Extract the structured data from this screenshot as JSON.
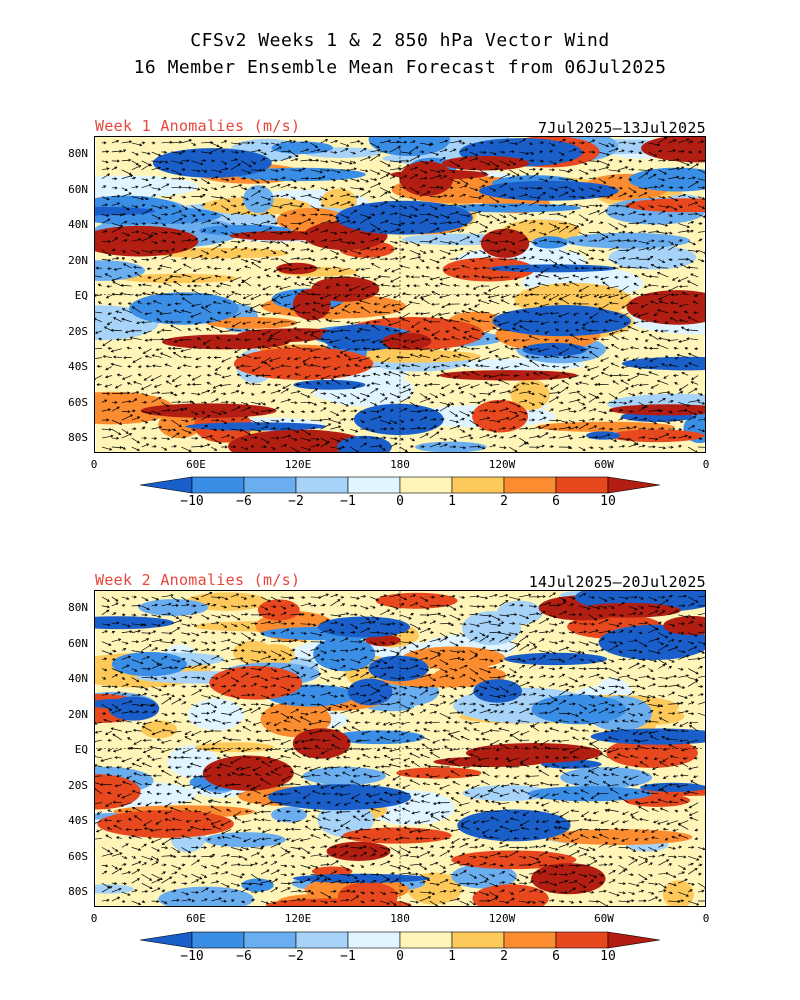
{
  "title_line1": "CFSv2 Weeks 1 & 2 850 hPa Vector Wind",
  "title_line2": "16 Member Ensemble Mean Forecast from 06Jul2025",
  "panels": [
    {
      "label": "Week 1 Anomalies (m/s)",
      "dates": "7Jul2025–13Jul2025"
    },
    {
      "label": "Week 2 Anomalies (m/s)",
      "dates": "14Jul2025–20Jul2025"
    }
  ],
  "lat_ticks": [
    "80N",
    "60N",
    "40N",
    "20N",
    "EQ",
    "20S",
    "40S",
    "60S",
    "80S"
  ],
  "lon_ticks": [
    "0",
    "60E",
    "120E",
    "180",
    "120W",
    "60W",
    "0"
  ],
  "colorbar": {
    "labels": [
      "-10",
      "-6",
      "-2",
      "-1",
      "0",
      "1",
      "2",
      "6",
      "10"
    ],
    "colors": [
      "#1a5fc9",
      "#3b8ee6",
      "#6aaef0",
      "#a6d3f7",
      "#e0f5ff",
      "#fff5b8",
      "#fdc95a",
      "#fb8c2f",
      "#e8481d",
      "#b21e12"
    ]
  }
}
